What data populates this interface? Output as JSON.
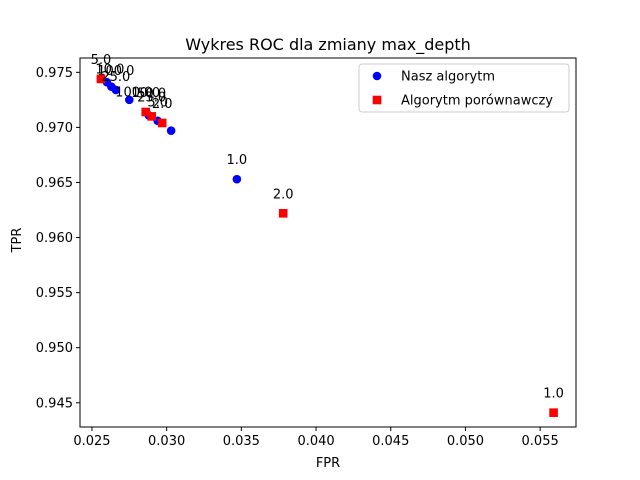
{
  "chart_data": {
    "type": "scatter",
    "title": "Wykres ROC dla zmiany max_depth",
    "xlabel": "FPR",
    "ylabel": "TPR",
    "xlim": [
      0.0242,
      0.0574
    ],
    "ylim": [
      0.9428,
      0.9763
    ],
    "xticks": [
      "0.025",
      "0.030",
      "0.035",
      "0.040",
      "0.045",
      "0.050",
      "0.055"
    ],
    "yticks": [
      "0.945",
      "0.950",
      "0.955",
      "0.960",
      "0.965",
      "0.970",
      "0.975"
    ],
    "legend_position": "top-right",
    "grid": false,
    "series": [
      {
        "name": "Nasz algorytm",
        "marker": "circle",
        "color": "#0000ff",
        "points": [
          {
            "x": 0.0347,
            "y": 0.9653,
            "label": "1.0"
          },
          {
            "x": 0.0303,
            "y": 0.9697,
            "label": ""
          },
          {
            "x": 0.0294,
            "y": 0.9706,
            "label": ""
          },
          {
            "x": 0.0288,
            "y": 0.9711,
            "label": ""
          },
          {
            "x": 0.0275,
            "y": 0.9725,
            "label": ""
          },
          {
            "x": 0.0266,
            "y": 0.9734,
            "label": "100.0"
          },
          {
            "x": 0.0263,
            "y": 0.9737,
            "label": ""
          },
          {
            "x": 0.026,
            "y": 0.9741,
            "label": ""
          }
        ]
      },
      {
        "name": "Algorytm porównawczy",
        "marker": "square",
        "color": "#ff0000",
        "points": [
          {
            "x": 0.0559,
            "y": 0.9441,
            "label": "1.0"
          },
          {
            "x": 0.0378,
            "y": 0.9622,
            "label": "2.0"
          },
          {
            "x": 0.0297,
            "y": 0.9704,
            "label": "2.0"
          },
          {
            "x": 0.029,
            "y": 0.971,
            "label": "25.0"
          },
          {
            "x": 0.0286,
            "y": 0.9714,
            "label": "10.0"
          },
          {
            "x": 0.0256,
            "y": 0.9744,
            "label": "5.0"
          }
        ]
      }
    ],
    "annotations_overlap": [
      {
        "x": 0.0262,
        "y": 0.9749,
        "text": "10.0"
      },
      {
        "x": 0.0266,
        "y": 0.9742,
        "text": "25.0"
      },
      {
        "x": 0.0278,
        "y": 0.9728,
        "text": "100.0"
      },
      {
        "x": 0.029,
        "y": 0.9727,
        "text": "50.0"
      },
      {
        "x": 0.0294,
        "y": 0.9719,
        "text": "5.0"
      }
    ]
  }
}
